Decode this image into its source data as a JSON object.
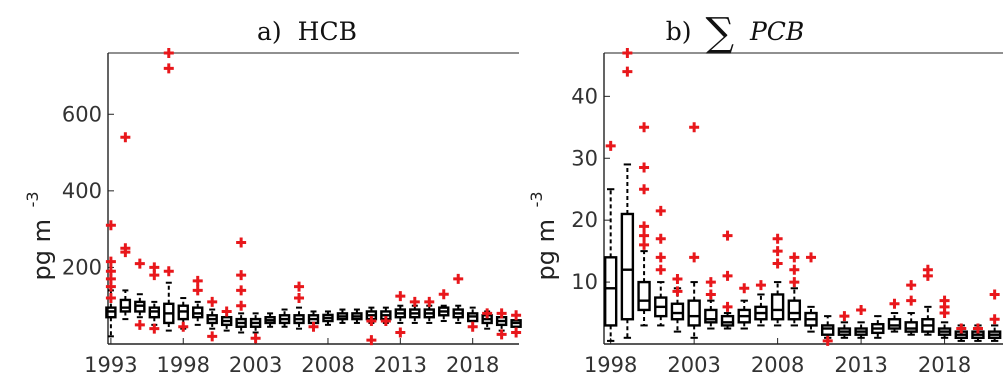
{
  "chart_data": [
    {
      "type": "box",
      "title_prefix": "a)",
      "title": "HCB",
      "ylabel": "pg m",
      "ylabel_exponent": "-3",
      "xlim": [
        1992.8,
        2021.2
      ],
      "ylim": [
        0,
        760
      ],
      "xticks": [
        1993,
        1998,
        2003,
        2008,
        2013,
        2018
      ],
      "yticks": [
        200,
        400,
        600
      ],
      "grid": false,
      "boxes": [
        {
          "year": 1993,
          "q1": 70,
          "median": 85,
          "q3": 95,
          "whisker_low": 20,
          "whisker_high": 140,
          "outliers": [
            120,
            150,
            170,
            190,
            215,
            310
          ]
        },
        {
          "year": 1994,
          "q1": 85,
          "median": 95,
          "q3": 115,
          "whisker_low": 65,
          "whisker_high": 140,
          "outliers": [
            240,
            250,
            540
          ]
        },
        {
          "year": 1995,
          "q1": 85,
          "median": 100,
          "q3": 110,
          "whisker_low": 70,
          "whisker_high": 130,
          "outliers": [
            50,
            210
          ]
        },
        {
          "year": 1996,
          "q1": 70,
          "median": 85,
          "q3": 95,
          "whisker_low": 50,
          "whisker_high": 110,
          "outliers": [
            40,
            180,
            200
          ]
        },
        {
          "year": 1997,
          "q1": 55,
          "median": 80,
          "q3": 105,
          "whisker_low": 35,
          "whisker_high": 160,
          "outliers": [
            190,
            720,
            760
          ]
        },
        {
          "year": 1998,
          "q1": 65,
          "median": 85,
          "q3": 100,
          "whisker_low": 40,
          "whisker_high": 120,
          "outliers": [
            45
          ]
        },
        {
          "year": 1999,
          "q1": 70,
          "median": 80,
          "q3": 95,
          "whisker_low": 50,
          "whisker_high": 110,
          "outliers": [
            140,
            165
          ]
        },
        {
          "year": 2000,
          "q1": 55,
          "median": 65,
          "q3": 75,
          "whisker_low": 40,
          "whisker_high": 90,
          "outliers": [
            20,
            110
          ]
        },
        {
          "year": 2001,
          "q1": 50,
          "median": 60,
          "q3": 70,
          "whisker_low": 35,
          "whisker_high": 85,
          "outliers": [
            85
          ]
        },
        {
          "year": 2002,
          "q1": 45,
          "median": 55,
          "q3": 65,
          "whisker_low": 30,
          "whisker_high": 80,
          "outliers": [
            100,
            140,
            180,
            265
          ]
        },
        {
          "year": 2003,
          "q1": 45,
          "median": 55,
          "q3": 65,
          "whisker_low": 30,
          "whisker_high": 80,
          "outliers": [
            15
          ]
        },
        {
          "year": 2004,
          "q1": 55,
          "median": 62,
          "q3": 70,
          "whisker_low": 45,
          "whisker_high": 80,
          "outliers": []
        },
        {
          "year": 2005,
          "q1": 55,
          "median": 65,
          "q3": 75,
          "whisker_low": 45,
          "whisker_high": 90,
          "outliers": []
        },
        {
          "year": 2006,
          "q1": 55,
          "median": 65,
          "q3": 75,
          "whisker_low": 40,
          "whisker_high": 95,
          "outliers": [
            120,
            150
          ]
        },
        {
          "year": 2007,
          "q1": 55,
          "median": 65,
          "q3": 75,
          "whisker_low": 45,
          "whisker_high": 85,
          "outliers": [
            45
          ]
        },
        {
          "year": 2008,
          "q1": 60,
          "median": 68,
          "q3": 76,
          "whisker_low": 50,
          "whisker_high": 85,
          "outliers": []
        },
        {
          "year": 2009,
          "q1": 65,
          "median": 72,
          "q3": 80,
          "whisker_low": 55,
          "whisker_high": 90,
          "outliers": []
        },
        {
          "year": 2010,
          "q1": 65,
          "median": 72,
          "q3": 80,
          "whisker_low": 55,
          "whisker_high": 90,
          "outliers": []
        },
        {
          "year": 2011,
          "q1": 65,
          "median": 75,
          "q3": 85,
          "whisker_low": 55,
          "whisker_high": 95,
          "outliers": [
            10,
            60
          ]
        },
        {
          "year": 2012,
          "q1": 65,
          "median": 75,
          "q3": 85,
          "whisker_low": 55,
          "whisker_high": 95,
          "outliers": [
            60
          ]
        },
        {
          "year": 2013,
          "q1": 70,
          "median": 80,
          "q3": 90,
          "whisker_low": 55,
          "whisker_high": 100,
          "outliers": [
            30,
            125
          ]
        },
        {
          "year": 2014,
          "q1": 70,
          "median": 80,
          "q3": 90,
          "whisker_low": 55,
          "whisker_high": 100,
          "outliers": [
            110
          ]
        },
        {
          "year": 2015,
          "q1": 70,
          "median": 80,
          "q3": 90,
          "whisker_low": 55,
          "whisker_high": 100,
          "outliers": [
            110
          ]
        },
        {
          "year": 2016,
          "q1": 75,
          "median": 85,
          "q3": 95,
          "whisker_low": 60,
          "whisker_high": 100,
          "outliers": [
            130
          ]
        },
        {
          "year": 2017,
          "q1": 70,
          "median": 80,
          "q3": 90,
          "whisker_low": 55,
          "whisker_high": 100,
          "outliers": [
            170
          ]
        },
        {
          "year": 2018,
          "q1": 60,
          "median": 72,
          "q3": 80,
          "whisker_low": 45,
          "whisker_high": 95,
          "outliers": [
            45
          ]
        },
        {
          "year": 2019,
          "q1": 55,
          "median": 65,
          "q3": 75,
          "whisker_low": 40,
          "whisker_high": 85,
          "outliers": [
            80
          ]
        },
        {
          "year": 2020,
          "q1": 50,
          "median": 60,
          "q3": 70,
          "whisker_low": 35,
          "whisker_high": 80,
          "outliers": [
            25,
            80
          ]
        },
        {
          "year": 2021,
          "q1": 45,
          "median": 55,
          "q3": 62,
          "whisker_low": 30,
          "whisker_high": 75,
          "outliers": [
            30,
            75
          ]
        }
      ]
    },
    {
      "type": "box",
      "title_prefix": "b)",
      "title": "PCB",
      "title_symbol": "∑",
      "ylabel": "pg m",
      "ylabel_exponent": "-3",
      "xlim": [
        1997.6,
        2021.5
      ],
      "ylim": [
        0,
        47
      ],
      "xticks": [
        1998,
        2003,
        2008,
        2013,
        2018
      ],
      "yticks": [
        10,
        20,
        30,
        40
      ],
      "grid": false,
      "boxes": [
        {
          "year": 1998,
          "q1": 3,
          "median": 9,
          "q3": 14,
          "whisker_low": 0.5,
          "whisker_high": 25,
          "outliers": [
            32
          ]
        },
        {
          "year": 1999,
          "q1": 4,
          "median": 12,
          "q3": 21,
          "whisker_low": 1,
          "whisker_high": 29,
          "outliers": [
            44,
            47
          ]
        },
        {
          "year": 2000,
          "q1": 5.5,
          "median": 7,
          "q3": 10,
          "whisker_low": 3,
          "whisker_high": 15,
          "outliers": [
            16,
            17.5,
            19,
            25,
            28.5,
            35
          ]
        },
        {
          "year": 2001,
          "q1": 4.5,
          "median": 6,
          "q3": 7.5,
          "whisker_low": 3,
          "whisker_high": 10,
          "outliers": [
            12,
            14,
            17,
            21.5
          ]
        },
        {
          "year": 2002,
          "q1": 4,
          "median": 5,
          "q3": 6.5,
          "whisker_low": 2,
          "whisker_high": 9,
          "outliers": [
            8.5,
            10.5
          ]
        },
        {
          "year": 2003,
          "q1": 3,
          "median": 4.5,
          "q3": 7,
          "whisker_low": 1,
          "whisker_high": 10,
          "outliers": [
            14,
            35
          ]
        },
        {
          "year": 2004,
          "q1": 3.5,
          "median": 4,
          "q3": 5.5,
          "whisker_low": 2.5,
          "whisker_high": 7,
          "outliers": [
            8,
            10
          ]
        },
        {
          "year": 2005,
          "q1": 3,
          "median": 3.5,
          "q3": 4.5,
          "whisker_low": 2.5,
          "whisker_high": 5,
          "outliers": [
            6,
            11,
            17.5
          ]
        },
        {
          "year": 2006,
          "q1": 3.5,
          "median": 4.5,
          "q3": 5.5,
          "whisker_low": 2.5,
          "whisker_high": 7,
          "outliers": [
            9
          ]
        },
        {
          "year": 2007,
          "q1": 4,
          "median": 5,
          "q3": 6,
          "whisker_low": 3,
          "whisker_high": 8,
          "outliers": [
            9.5
          ]
        },
        {
          "year": 2008,
          "q1": 4,
          "median": 5.5,
          "q3": 8,
          "whisker_low": 3,
          "whisker_high": 10,
          "outliers": [
            13,
            15,
            17
          ]
        },
        {
          "year": 2009,
          "q1": 4,
          "median": 5,
          "q3": 7,
          "whisker_low": 3,
          "whisker_high": 9,
          "outliers": [
            10,
            12,
            14
          ]
        },
        {
          "year": 2010,
          "q1": 3,
          "median": 4,
          "q3": 5,
          "whisker_low": 2,
          "whisker_high": 6,
          "outliers": [
            14
          ]
        },
        {
          "year": 2011,
          "q1": 1.5,
          "median": 2.5,
          "q3": 3,
          "whisker_low": 1,
          "whisker_high": 4.5,
          "outliers": [
            0.5
          ]
        },
        {
          "year": 2012,
          "q1": 1.5,
          "median": 2,
          "q3": 2.5,
          "whisker_low": 1,
          "whisker_high": 3.5,
          "outliers": [
            4.5
          ]
        },
        {
          "year": 2013,
          "q1": 1.5,
          "median": 2,
          "q3": 2.5,
          "whisker_low": 1,
          "whisker_high": 3.5,
          "outliers": [
            5.5
          ]
        },
        {
          "year": 2014,
          "q1": 1.8,
          "median": 2.5,
          "q3": 3.2,
          "whisker_low": 1,
          "whisker_high": 4.5,
          "outliers": []
        },
        {
          "year": 2015,
          "q1": 2.5,
          "median": 3,
          "q3": 4,
          "whisker_low": 2,
          "whisker_high": 5,
          "outliers": [
            6.5
          ]
        },
        {
          "year": 2016,
          "q1": 2,
          "median": 2.5,
          "q3": 3.5,
          "whisker_low": 1.5,
          "whisker_high": 5,
          "outliers": [
            7,
            9.5
          ]
        },
        {
          "year": 2017,
          "q1": 2,
          "median": 3,
          "q3": 4,
          "whisker_low": 1.5,
          "whisker_high": 6,
          "outliers": [
            11,
            12
          ]
        },
        {
          "year": 2018,
          "q1": 1.5,
          "median": 2,
          "q3": 2.5,
          "whisker_low": 1,
          "whisker_high": 3.5,
          "outliers": [
            5,
            6,
            7
          ]
        },
        {
          "year": 2019,
          "q1": 1,
          "median": 1.5,
          "q3": 2,
          "whisker_low": 0.5,
          "whisker_high": 3,
          "outliers": [
            2.5
          ]
        },
        {
          "year": 2020,
          "q1": 1,
          "median": 1.5,
          "q3": 2,
          "whisker_low": 0.5,
          "whisker_high": 3,
          "outliers": [
            2.5
          ]
        },
        {
          "year": 2021,
          "q1": 1,
          "median": 1.5,
          "q3": 2,
          "whisker_low": 0.5,
          "whisker_high": 3,
          "outliers": [
            8,
            4
          ]
        }
      ]
    }
  ],
  "colors": {
    "box": "#000000",
    "outlier": "#e8171b",
    "axis": "#222222",
    "background": "#ffffff"
  }
}
